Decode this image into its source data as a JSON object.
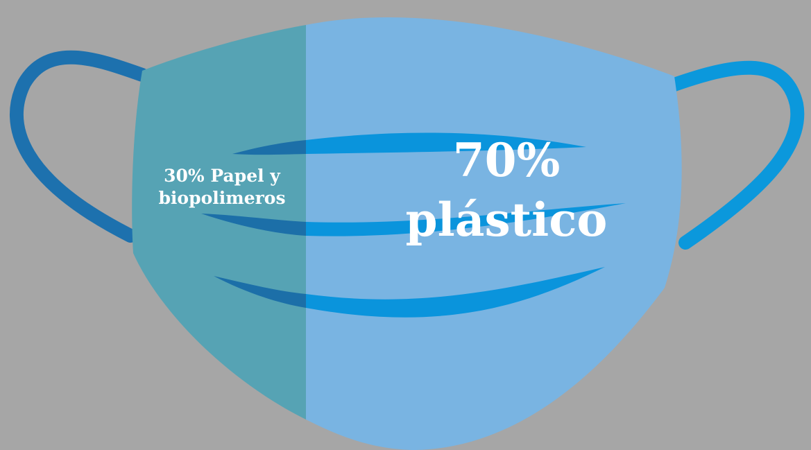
{
  "infographic": {
    "left_label": [
      "30% Papel y",
      "biopolimeros"
    ],
    "right_label": [
      "70%",
      "plástico"
    ],
    "shares": {
      "paper_biopolymers_percent": 30,
      "plastic_percent": 70
    }
  },
  "colors": {
    "background": "#a6a6a6",
    "mask_left": "#56a3b4",
    "mask_right": "#79b4e2",
    "ear_loop_left": "#1d71ae",
    "ear_loop_right": "#0b98dc",
    "pleat_dark": "#1c6fa8",
    "pleat_light": "#0a94dc",
    "text": "#ffffff"
  }
}
